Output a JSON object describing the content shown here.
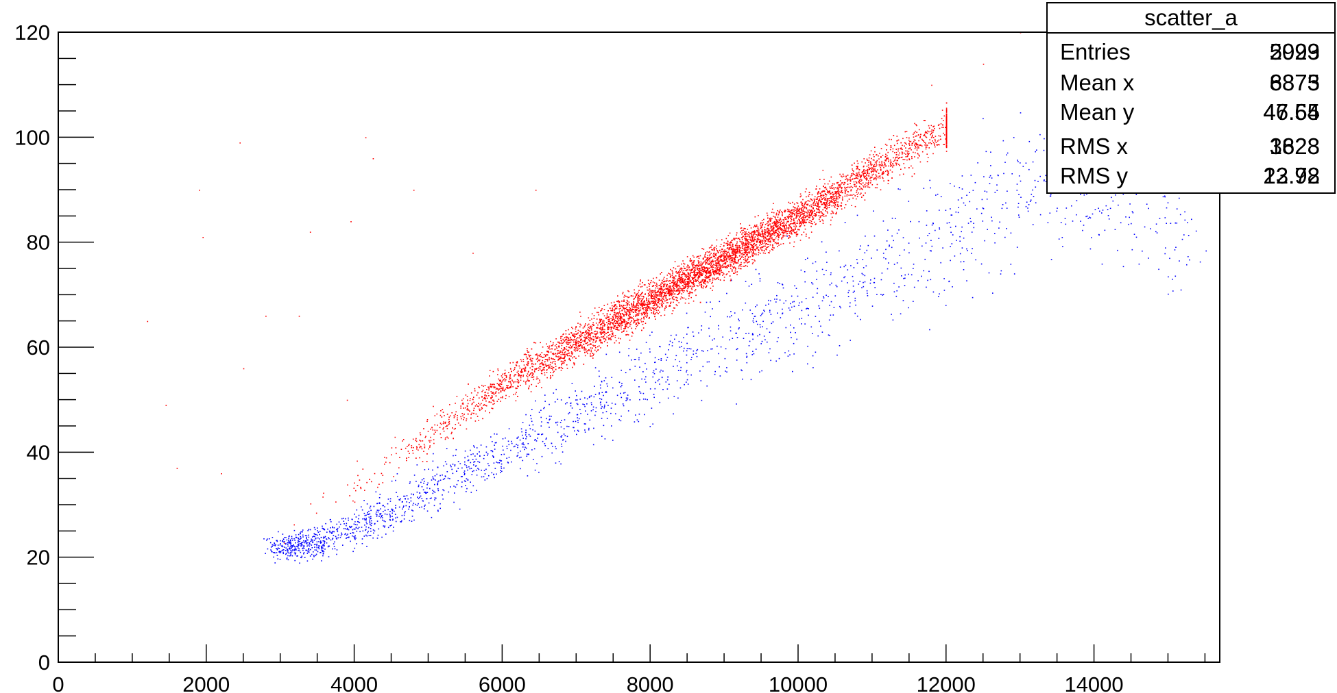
{
  "stats_box": {
    "title": "scatter_a",
    "rows": [
      {
        "label": "Entries",
        "values": [
          "5923",
          "2099"
        ]
      },
      {
        "label": "Mean x",
        "values": [
          "6875",
          "8873"
        ]
      },
      {
        "label": "Mean y",
        "values": [
          "46.65",
          "47.54"
        ]
      },
      {
        "label": "RMS x",
        "values": [
          "3828",
          "1623"
        ]
      },
      {
        "label": "RMS y",
        "values": [
          "22.98",
          "13.72"
        ]
      }
    ]
  },
  "colors": {
    "series_a": "#ff0000",
    "series_b": "#0000ff",
    "axis": "#000000",
    "background": "#ffffff"
  },
  "chart_data": {
    "type": "scatter",
    "title": "",
    "xlabel": "",
    "ylabel": "",
    "xlim": [
      0,
      15700
    ],
    "ylim": [
      0,
      120
    ],
    "x_ticks": [
      "0",
      "2000",
      "4000",
      "6000",
      "8000",
      "10000",
      "12000",
      "14000"
    ],
    "y_ticks": [
      "0",
      "20",
      "40",
      "60",
      "80",
      "100",
      "120"
    ],
    "grid": false,
    "legend": "none",
    "series": [
      {
        "color": "#ff0000",
        "count": 5923,
        "description_points": [
          [
            2100,
            21
          ],
          [
            2500,
            23
          ],
          [
            3000,
            25
          ],
          [
            3500,
            29
          ],
          [
            4000,
            33
          ],
          [
            4500,
            38
          ],
          [
            5000,
            43
          ],
          [
            5500,
            48
          ],
          [
            6000,
            53
          ],
          [
            6500,
            57
          ],
          [
            7000,
            61
          ],
          [
            7500,
            65
          ],
          [
            8000,
            69
          ],
          [
            8500,
            73
          ],
          [
            9000,
            77
          ],
          [
            9500,
            81
          ],
          [
            10000,
            85
          ],
          [
            10500,
            89
          ],
          [
            11000,
            94
          ],
          [
            11500,
            98
          ],
          [
            12000,
            102
          ]
        ],
        "outliers": [
          [
            1200,
            65
          ],
          [
            1450,
            49
          ],
          [
            1600,
            37
          ],
          [
            1900,
            90
          ],
          [
            1950,
            81
          ],
          [
            2200,
            36
          ],
          [
            2450,
            99
          ],
          [
            2500,
            56
          ],
          [
            2800,
            66
          ],
          [
            3250,
            66
          ],
          [
            3400,
            82
          ],
          [
            3900,
            50
          ],
          [
            3950,
            84
          ],
          [
            4150,
            100
          ],
          [
            4250,
            96
          ],
          [
            4800,
            90
          ],
          [
            5600,
            78
          ],
          [
            6450,
            90
          ],
          [
            13000,
            120
          ],
          [
            12500,
            114
          ],
          [
            11800,
            110
          ]
        ]
      },
      {
        "color": "#0000ff",
        "count": 2099,
        "description_points": [
          [
            3000,
            22
          ],
          [
            3500,
            23
          ],
          [
            4000,
            26
          ],
          [
            4500,
            29
          ],
          [
            5000,
            33
          ],
          [
            5500,
            37
          ],
          [
            6000,
            40
          ],
          [
            6500,
            44
          ],
          [
            7000,
            47
          ],
          [
            7500,
            51
          ],
          [
            8000,
            55
          ],
          [
            8500,
            58
          ],
          [
            9000,
            61
          ],
          [
            9500,
            64
          ],
          [
            10000,
            68
          ],
          [
            10500,
            71
          ],
          [
            11000,
            74
          ],
          [
            11500,
            78
          ],
          [
            12000,
            82
          ],
          [
            12500,
            86
          ],
          [
            13000,
            90
          ],
          [
            13500,
            93
          ],
          [
            14000,
            90
          ],
          [
            14500,
            91
          ],
          [
            15300,
            83
          ]
        ]
      }
    ]
  }
}
